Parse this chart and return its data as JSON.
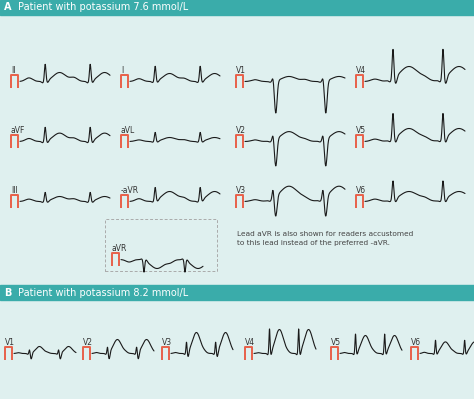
{
  "title_a": "Patient with potassium 7.6 mmol/L",
  "title_b": "Patient with potassium 8.2 mmol/L",
  "label_a": "A",
  "label_b": "B",
  "header_color": "#3aacaa",
  "bg_color": "#dff0ef",
  "ecg_color": "#1a1a1a",
  "cal_color": "#e8614a",
  "text_color": "#333333",
  "annotation_text": "Lead aVR is also shown for readers accustomed\nto this lead instead of the preferred -aVR.",
  "leads_row1": [
    "II",
    "I",
    "V1",
    "V4"
  ],
  "leads_row2": [
    "aVF",
    "aVL",
    "V2",
    "V5"
  ],
  "leads_row3": [
    "III",
    "-aVR",
    "V3",
    "V6"
  ],
  "leads_b": [
    "V1",
    "V2",
    "V3",
    "V4",
    "V5",
    "V6"
  ],
  "figw": 4.74,
  "figh": 3.99,
  "dpi": 100
}
